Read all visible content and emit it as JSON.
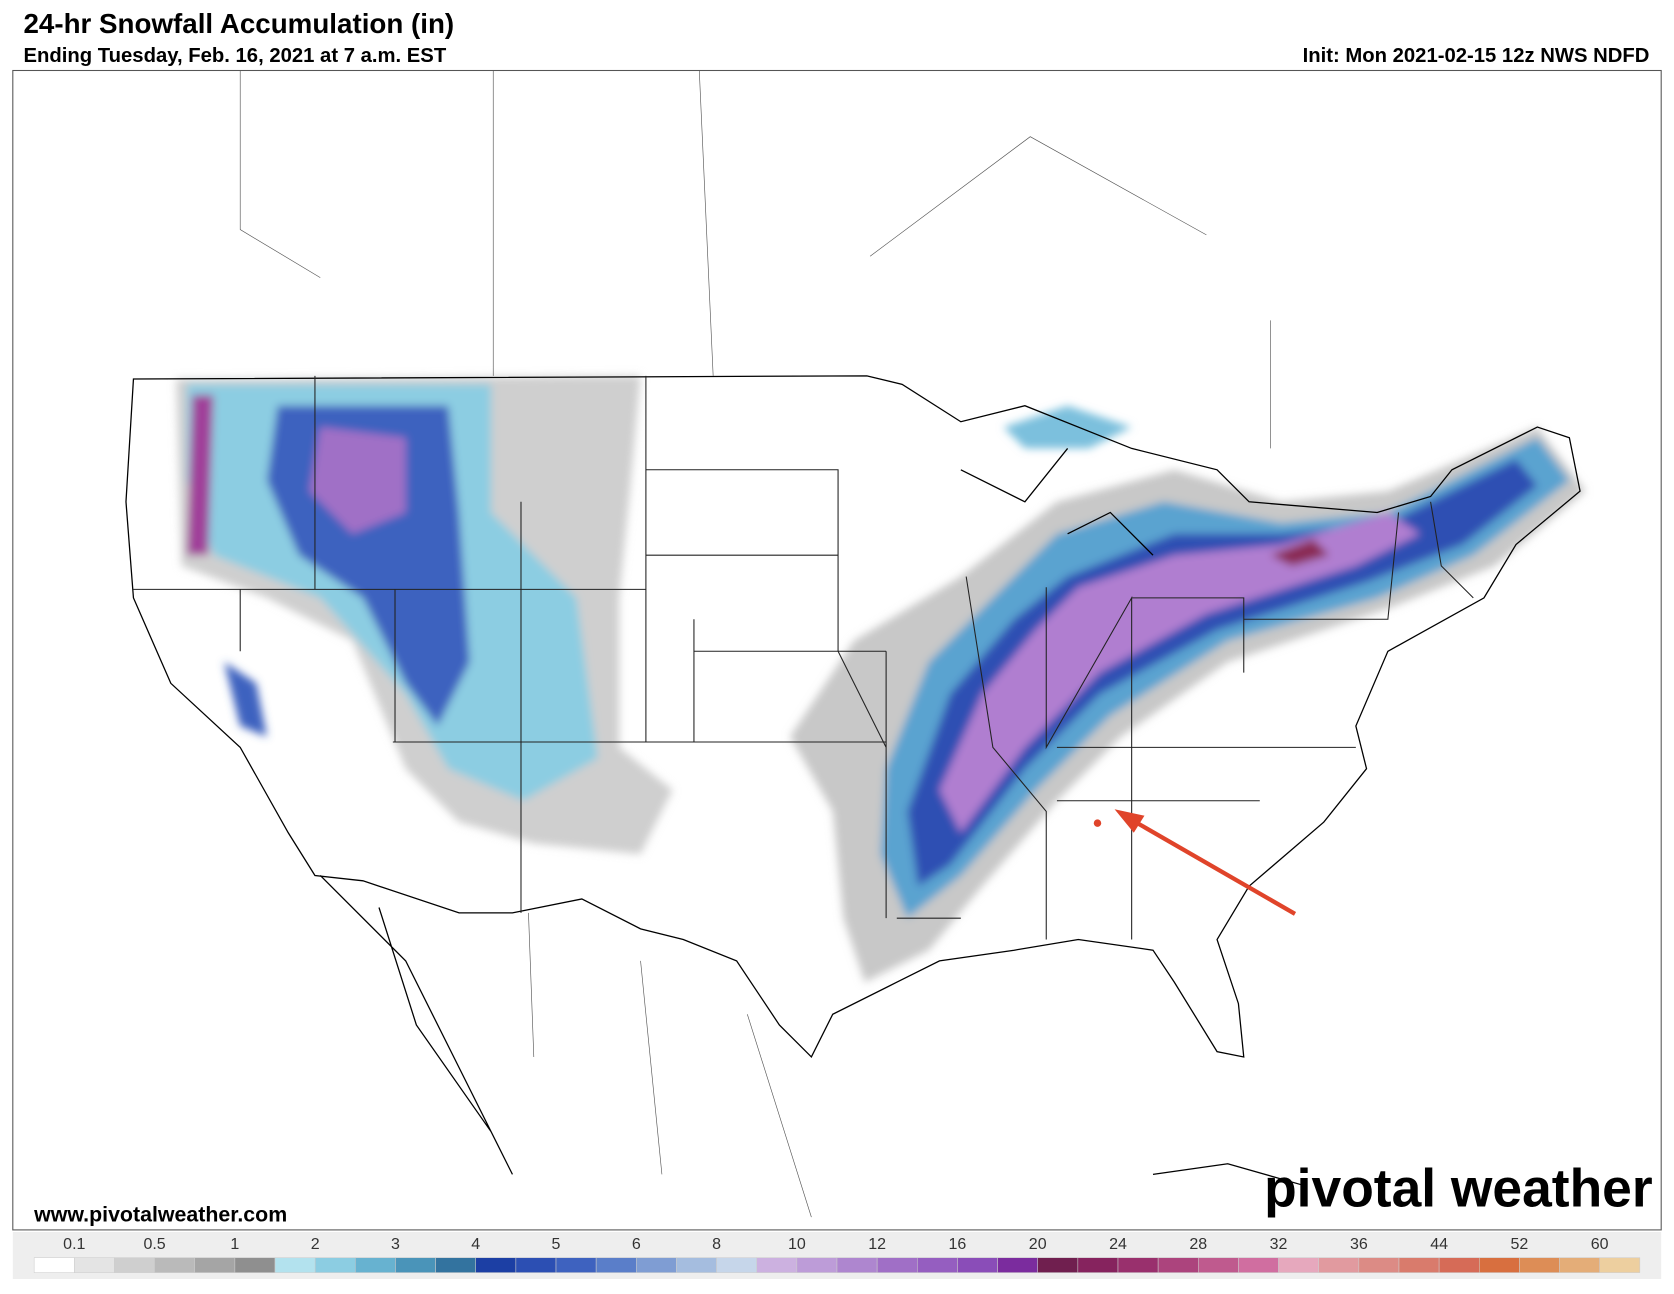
{
  "header": {
    "title": "24-hr Snowfall Accumulation (in)",
    "subtitle": "Ending Tuesday, Feb. 16, 2021 at 7 a.m. EST",
    "init": "Init: Mon 2021-02-15 12z NWS NDFD"
  },
  "footer": {
    "website": "www.pivotalweather.com",
    "logo": "pivotal weather"
  },
  "colorbar": {
    "labels": [
      0.1,
      0.5,
      1,
      2,
      3,
      4,
      5,
      6,
      8,
      10,
      12,
      16,
      20,
      24,
      28,
      32,
      36,
      44,
      52,
      60
    ],
    "colors": [
      "#ffffff",
      "#e4e4e4",
      "#cfcfcf",
      "#bababa",
      "#a5a5a5",
      "#8f8f8f",
      "#b3e2ee",
      "#8ccde2",
      "#67b2d0",
      "#4a94b9",
      "#33739f",
      "#1c3fa4",
      "#2c4fb3",
      "#3e62bf",
      "#5a7ec9",
      "#7f9dd3",
      "#a5bddf",
      "#c6d6ea",
      "#ccb1e0",
      "#bd9cd8",
      "#ae86cf",
      "#a06fc6",
      "#955ec0",
      "#8a4db8",
      "#7b2c9e",
      "#701f4f",
      "#86235e",
      "#99306d",
      "#ac447d",
      "#bf5a8e",
      "#d06ea0",
      "#e6a8bd",
      "#e19a9f",
      "#dc8b85",
      "#d97b6c",
      "#d66b57",
      "#d86f3f",
      "#dd8d56",
      "#e4ad78",
      "#edcf9f"
    ]
  }
}
